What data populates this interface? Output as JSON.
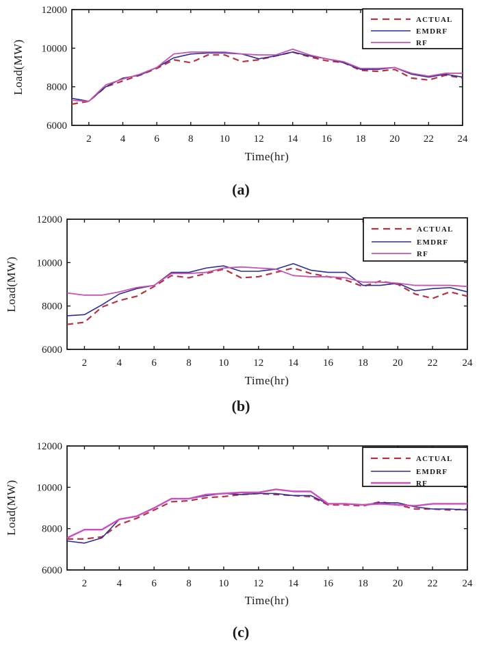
{
  "figure": {
    "background": "#ffffff",
    "axis_color": "#1a1a1a",
    "legend_background": "#ffffff"
  },
  "chart_data": [
    {
      "type": "line",
      "panel": "a",
      "caption": "(a)",
      "xlabel": "Time(hr)",
      "ylabel": "Load(MW)",
      "x": [
        1,
        2,
        3,
        4,
        5,
        6,
        7,
        8,
        9,
        10,
        11,
        12,
        13,
        14,
        15,
        16,
        17,
        18,
        19,
        20,
        21,
        22,
        23,
        24
      ],
      "xlim": [
        1,
        24
      ],
      "ylim": [
        6000,
        12000
      ],
      "x_ticks": [
        2,
        4,
        6,
        8,
        10,
        12,
        14,
        16,
        18,
        20,
        22,
        24
      ],
      "y_ticks": [
        6000,
        8000,
        10000,
        12000
      ],
      "grid": false,
      "legend_position": "top-right",
      "series": [
        {
          "name": "ACTUAL",
          "color": "#b43243",
          "line_style": "dashed",
          "line_width": 2.2,
          "values": [
            7100,
            7250,
            8000,
            8300,
            8600,
            8950,
            9400,
            9250,
            9650,
            9650,
            9300,
            9400,
            9600,
            9800,
            9550,
            9350,
            9250,
            8850,
            8800,
            8900,
            8450,
            8350,
            8600,
            8450
          ]
        },
        {
          "name": "EMDRF",
          "color": "#2c2c93",
          "line_style": "solid",
          "line_width": 1.6,
          "values": [
            7400,
            7250,
            8000,
            8450,
            8600,
            9000,
            9500,
            9700,
            9750,
            9750,
            9700,
            9450,
            9600,
            9800,
            9600,
            9450,
            9250,
            8900,
            8900,
            9000,
            8650,
            8500,
            8650,
            8500
          ]
        },
        {
          "name": "RF",
          "color": "#c653b1",
          "line_style": "solid",
          "line_width": 1.8,
          "values": [
            7300,
            7250,
            8100,
            8400,
            8650,
            9000,
            9700,
            9800,
            9800,
            9800,
            9700,
            9650,
            9650,
            9950,
            9650,
            9450,
            9300,
            8950,
            8950,
            9000,
            8700,
            8550,
            8700,
            8700
          ]
        }
      ]
    },
    {
      "type": "line",
      "panel": "b",
      "caption": "(b)",
      "xlabel": "Time(hr)",
      "ylabel": "Load(MW)",
      "x": [
        1,
        2,
        3,
        4,
        5,
        6,
        7,
        8,
        9,
        10,
        11,
        12,
        13,
        14,
        15,
        16,
        17,
        18,
        19,
        20,
        21,
        22,
        23,
        24
      ],
      "xlim": [
        1,
        24
      ],
      "ylim": [
        6000,
        12000
      ],
      "x_ticks": [
        2,
        4,
        6,
        8,
        10,
        12,
        14,
        16,
        18,
        20,
        22,
        24
      ],
      "y_ticks": [
        6000,
        8000,
        10000,
        12000
      ],
      "grid": false,
      "legend_position": "top-right",
      "series": [
        {
          "name": "ACTUAL",
          "color": "#b43243",
          "line_style": "dashed",
          "line_width": 2.2,
          "values": [
            7150,
            7250,
            7950,
            8250,
            8450,
            8900,
            9400,
            9300,
            9500,
            9700,
            9300,
            9350,
            9550,
            9750,
            9500,
            9350,
            9200,
            8900,
            9150,
            9000,
            8550,
            8350,
            8650,
            8450
          ]
        },
        {
          "name": "EMDRF",
          "color": "#2c2c93",
          "line_style": "solid",
          "line_width": 1.6,
          "values": [
            7550,
            7600,
            8050,
            8550,
            8800,
            8950,
            9550,
            9550,
            9750,
            9850,
            9600,
            9600,
            9700,
            9950,
            9650,
            9550,
            9550,
            8950,
            8950,
            9050,
            8700,
            8800,
            8850,
            8650
          ]
        },
        {
          "name": "RF",
          "color": "#c653b1",
          "line_style": "solid",
          "line_width": 1.8,
          "values": [
            8600,
            8500,
            8500,
            8650,
            8850,
            8950,
            9500,
            9500,
            9550,
            9750,
            9800,
            9750,
            9700,
            9400,
            9350,
            9350,
            9300,
            9100,
            9100,
            9050,
            8950,
            8950,
            8950,
            8900
          ]
        }
      ]
    },
    {
      "type": "line",
      "panel": "c",
      "caption": "(c)",
      "xlabel": "Time(hr)",
      "ylabel": "Load(MW)",
      "x": [
        1,
        2,
        3,
        4,
        5,
        6,
        7,
        8,
        9,
        10,
        11,
        12,
        13,
        14,
        15,
        16,
        17,
        18,
        19,
        20,
        21,
        22,
        23,
        24
      ],
      "xlim": [
        1,
        24
      ],
      "ylim": [
        6000,
        12000
      ],
      "x_ticks": [
        2,
        4,
        6,
        8,
        10,
        12,
        14,
        16,
        18,
        20,
        22,
        24
      ],
      "y_ticks": [
        6000,
        8000,
        10000,
        12000
      ],
      "grid": false,
      "legend_position": "top-right",
      "series": [
        {
          "name": "ACTUAL",
          "color": "#b43243",
          "line_style": "dashed",
          "line_width": 2.2,
          "values": [
            7500,
            7500,
            7600,
            8200,
            8500,
            8900,
            9300,
            9350,
            9500,
            9550,
            9650,
            9700,
            9650,
            9600,
            9550,
            9150,
            9150,
            9100,
            9300,
            9150,
            8950,
            8950,
            8900,
            8950
          ]
        },
        {
          "name": "EMDRF",
          "color": "#2c2c93",
          "line_style": "solid",
          "line_width": 1.6,
          "values": [
            7400,
            7300,
            7550,
            8450,
            8600,
            9000,
            9450,
            9450,
            9600,
            9700,
            9650,
            9700,
            9700,
            9600,
            9600,
            9200,
            9200,
            9150,
            9250,
            9250,
            9050,
            8950,
            8950,
            8900
          ]
        },
        {
          "name": "RF",
          "color": "#cb4ec0",
          "line_style": "solid",
          "line_width": 2.4,
          "values": [
            7550,
            7950,
            7950,
            8450,
            8600,
            9000,
            9450,
            9450,
            9650,
            9700,
            9750,
            9750,
            9900,
            9800,
            9800,
            9200,
            9200,
            9150,
            9200,
            9150,
            9100,
            9200,
            9200,
            9200
          ]
        }
      ]
    }
  ]
}
